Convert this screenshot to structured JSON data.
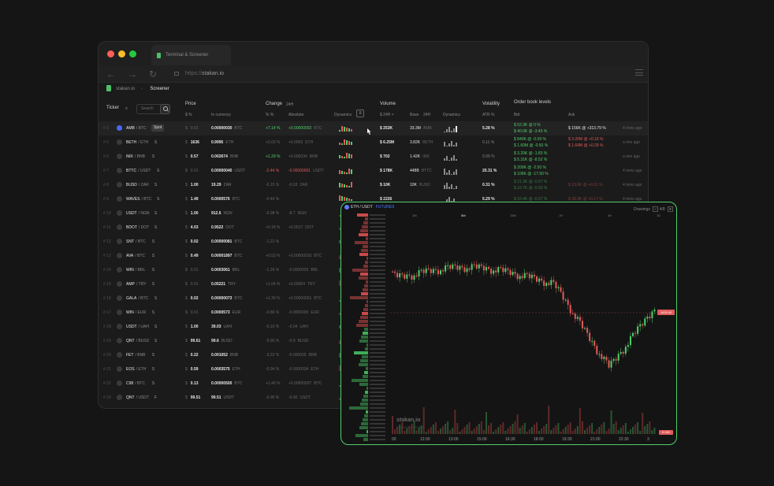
{
  "browser": {
    "tab_title": "Terminal & Screener",
    "url_protocol": "https://",
    "url_host": "stakan.io"
  },
  "breadcrumbs": {
    "site": "stakan.io",
    "current": "Screener"
  },
  "headers": {
    "ticker": "Ticker",
    "search_placeholder": "Search",
    "price": "Price",
    "price_sub": "$   %",
    "in_currency": "In currency",
    "change": "Change",
    "change_period": "24H",
    "pct_sub": "%   %",
    "absolute": "Absolute",
    "dynamics": "Dynamics",
    "volume": "Volume",
    "vol_sub": "$ 24H ×",
    "base": "Base",
    "base_period": "24H",
    "vol_dynamics": "Dynamics",
    "volatility": "Volatility",
    "atr": "ATR %",
    "orderbook": "Order book levels",
    "bid": "Bid",
    "ask": "Ask"
  },
  "rows": [
    {
      "idx": "# 3",
      "pair": "AMB",
      "quote": "/ BTC",
      "tag": "Spot",
      "price": "0.01",
      "price_dim": true,
      "incur": "0.00000030",
      "incur_q": "BTC",
      "chg": "+7.14 %",
      "chg_c": "green",
      "abs": "+0.00000002",
      "abs_q": "BTC",
      "abs_c": "green",
      "vol": "$ 253K",
      "base": "33.3M",
      "base_q": "AMB",
      "atr": "5.28 %",
      "bid1": "$ 52.3K @ 0 %",
      "bid2": "$ 40.0K @ -3.45 %",
      "ask1": "$ 156K @ +313.79 %",
      "ago": "4 mins ago"
    },
    {
      "idx": "# 5",
      "pair": "BETH",
      "quote": "/ ETH",
      "tag": "S",
      "price": "1636",
      "incur": "0.9995",
      "incur_q": "ETH",
      "chg": "+0.03 %",
      "chg_c": "dim",
      "abs": "+0.0003",
      "abs_q": "ETH",
      "abs_c": "dim",
      "vol": "$ 6.25M",
      "base": "3.82K",
      "base_q": "BETH",
      "atr": "0.11 %",
      "bid1": "$ 840K @ -0.09 %",
      "bid2": "$ 1.60M @ -0.50 %",
      "ask1": "$ 3.20M @ +0.19 %",
      "ask2": "$ 1.64M @ +0.29 %",
      "ago": "a min ago"
    },
    {
      "idx": "# 6",
      "pair": "IMX",
      "quote": "/ BNB",
      "tag": "S",
      "price": "0.57",
      "incur": "0.002674",
      "incur_q": "BNB",
      "chg": "+1.29 %",
      "chg_c": "green",
      "abs": "+0.000034",
      "abs_q": "BNB",
      "abs_c": "dim",
      "vol": "$ 702",
      "base": "1.42K",
      "base_q": "IMX",
      "atr": "0.09 %",
      "bid1": "$ 3.20K @ -1.83 %",
      "bid2": "$ 5.31K @ -8.52 %",
      "ago": "a min ago"
    },
    {
      "idx": "# 7",
      "pair": "BTTC",
      "quote": "/ USDT",
      "tag": "S",
      "price": "0.01",
      "price_dim": true,
      "incur": "0.00000040",
      "incur_q": "USDT",
      "chg": "-2.44 %",
      "chg_c": "red",
      "abs": "-0.00000001",
      "abs_q": "USDT",
      "abs_c": "red",
      "vol": "$ 178K",
      "base": "448B",
      "base_q": "BTTC",
      "atr": "20.31 %",
      "bid1": "$ 200K @ -2.50 %",
      "bid2": "$ 106K @ -17.50 %",
      "ago": "4 mins ago"
    },
    {
      "idx": "# 8",
      "pair": "BUSD",
      "quote": "/ ZAR",
      "tag": "S",
      "price": "1.00",
      "incur": "19.29",
      "incur_q": "ZAR",
      "chg": "-0.15 %",
      "chg_c": "dim",
      "abs": "-0.03",
      "abs_q": "ZAR",
      "abs_c": "dim",
      "vol": "$ 10K",
      "base": "10K",
      "base_q": "BUSD",
      "atr": "0.31 %",
      "bid1": "$ 21.3K @ -0.57 %",
      "bid2": "$ 16.7K @ -0.93 %",
      "ask1": "$ 23.6K @ +0.31 %",
      "ago": "4 mins ago"
    },
    {
      "idx": "# 9",
      "pair": "WAVES",
      "quote": "/ BTC",
      "tag": "S",
      "price": "1.49",
      "incur": "0.0000576",
      "incur_q": "BTC",
      "chg": "-0.49 %",
      "chg_c": "dim",
      "abs": "",
      "abs_q": "",
      "abs_c": "dim",
      "vol": "$ 2226",
      "base": "",
      "base_q": "",
      "atr": "5.29 %",
      "bid1": "$ 10.4K @ -0.37 %",
      "ask1": "$ 28.9K @ +0.17 %",
      "ago": "4 mins ago"
    },
    {
      "idx": "# 10",
      "pair": "USDT",
      "quote": "/ NGN",
      "tag": "S",
      "price": "1.00",
      "incur": "912.6",
      "incur_q": "NGN",
      "chg": "-0.98 %",
      "chg_c": "dim",
      "abs": "-8.7",
      "abs_q": "NGN",
      "abs_c": "dim"
    },
    {
      "idx": "# 11",
      "pair": "BDOT",
      "quote": "/ DOT",
      "tag": "S",
      "price": "4.03",
      "incur": "0.9522",
      "incur_q": "DOT",
      "chg": "+0.18 %",
      "chg_c": "dim",
      "abs": "+0.0017",
      "abs_q": "DOT",
      "abs_c": "dim"
    },
    {
      "idx": "# 12",
      "pair": "SNT",
      "quote": "/ BTC",
      "tag": "S",
      "price": "0.02",
      "incur": "0.00000081",
      "incur_q": "BTC",
      "chg": "-1.21 %",
      "chg_c": "dim",
      "abs": "",
      "abs_q": "",
      "abs_c": "dim"
    },
    {
      "idx": "# 13",
      "pair": "AVA",
      "quote": "/ BTC",
      "tag": "S",
      "price": "0.49",
      "incur": "0.00001897",
      "incur_q": "BTC",
      "chg": "+0.53 %",
      "chg_c": "dim",
      "abs": "+0.00000010",
      "abs_q": "BTC",
      "abs_c": "dim"
    },
    {
      "idx": "# 14",
      "pair": "WIN",
      "quote": "/ BRL",
      "tag": "S",
      "price": "0.01",
      "price_dim": true,
      "incur": "0.0003061",
      "incur_q": "BRL",
      "chg": "-1.26 %",
      "chg_c": "dim",
      "abs": "-0.0000039",
      "abs_q": "BRL",
      "abs_c": "dim"
    },
    {
      "idx": "# 15",
      "pair": "AMP",
      "quote": "/ TRY",
      "tag": "S",
      "price": "0.01",
      "price_dim": true,
      "incur": "0.05221",
      "incur_q": "TRY",
      "chg": "+1.04 %",
      "chg_c": "dim",
      "abs": "+0.00054",
      "abs_q": "TRY",
      "abs_c": "dim"
    },
    {
      "idx": "# 16",
      "pair": "GALA",
      "quote": "/ BTC",
      "tag": "S",
      "price": "0.02",
      "incur": "0.00000073",
      "incur_q": "BTC",
      "chg": "+1.39 %",
      "chg_c": "dim",
      "abs": "+0.00000001",
      "abs_q": "BTC",
      "abs_c": "dim"
    },
    {
      "idx": "# 17",
      "pair": "WIN",
      "quote": "/ EUR",
      "tag": "S",
      "price": "0.01",
      "price_dim": true,
      "incur": "0.0000573",
      "incur_q": "EUR",
      "chg": "-0.86 %",
      "chg_c": "dim",
      "abs": "-0.0000005",
      "abs_q": "EUR",
      "abs_c": "dim"
    },
    {
      "idx": "# 18",
      "pair": "USDT",
      "quote": "/ UAH",
      "tag": "S",
      "price": "1.00",
      "incur": "39.03",
      "incur_q": "UAH",
      "chg": "-0.10 %",
      "chg_c": "dim",
      "abs": "-0.04",
      "abs_q": "UAH",
      "abs_c": "dim"
    },
    {
      "idx": "# 19",
      "pair": "QNT",
      "quote": "/ BUSD",
      "tag": "S",
      "price": "99.61",
      "incur": "99.6",
      "incur_q": "BUSD",
      "chg": "-0.90 %",
      "chg_c": "dim",
      "abs": "-0.9",
      "abs_q": "BUSD",
      "abs_c": "dim"
    },
    {
      "idx": "# 20",
      "pair": "FET",
      "quote": "/ BNB",
      "tag": "S",
      "price": "0.22",
      "incur": "0.001052",
      "incur_q": "BNB",
      "chg": "-3.22 %",
      "chg_c": "dim",
      "abs": "-0.000035",
      "abs_q": "BNB",
      "abs_c": "dim"
    },
    {
      "idx": "# 21",
      "pair": "EOS",
      "quote": "/ ETH",
      "tag": "S",
      "price": "0.59",
      "incur": "0.0003575",
      "incur_q": "ETH",
      "chg": "-0.94 %",
      "chg_c": "dim",
      "abs": "-0.0000034",
      "abs_q": "ETH",
      "abs_c": "dim"
    },
    {
      "idx": "# 22",
      "pair": "C98",
      "quote": "/ BTC",
      "tag": "S",
      "price": "0.13",
      "incur": "0.00000500",
      "incur_q": "BTC",
      "chg": "+1.40 %",
      "chg_c": "dim",
      "abs": "+0.00000007",
      "abs_q": "BTC",
      "abs_c": "dim"
    },
    {
      "idx": "# 23",
      "pair": "QNT",
      "quote": "/ USDT",
      "tag": "F",
      "price": "99.51",
      "incur": "99.51",
      "incur_q": "USDT",
      "chg": "-0.90 %",
      "chg_c": "dim",
      "abs": "-0.90",
      "abs_q": "USDT",
      "abs_c": "dim"
    }
  ],
  "chart_window": {
    "symbol": "ETH / USDT",
    "market": "FUTURES",
    "tools_label": "Drawings",
    "zoom": "4/8",
    "timeframes": [
      "1M",
      "5M",
      "15M",
      "1H",
      "4H",
      "1D"
    ],
    "active_tf": "5M",
    "watermark": "stakan.io",
    "watermark_sub": "ETH/USDT  FUTURES",
    "x_ticks": [
      "00",
      "12:00",
      "13:00",
      "15:00",
      "16:30",
      "18:00",
      "19:30",
      "21:00",
      "22:30",
      "3"
    ],
    "last_price": "1635.00",
    "last_price_2": "0.000"
  },
  "colors": {
    "accent": "#4fd06a",
    "down": "#e25a5a",
    "bg": "#151515"
  }
}
